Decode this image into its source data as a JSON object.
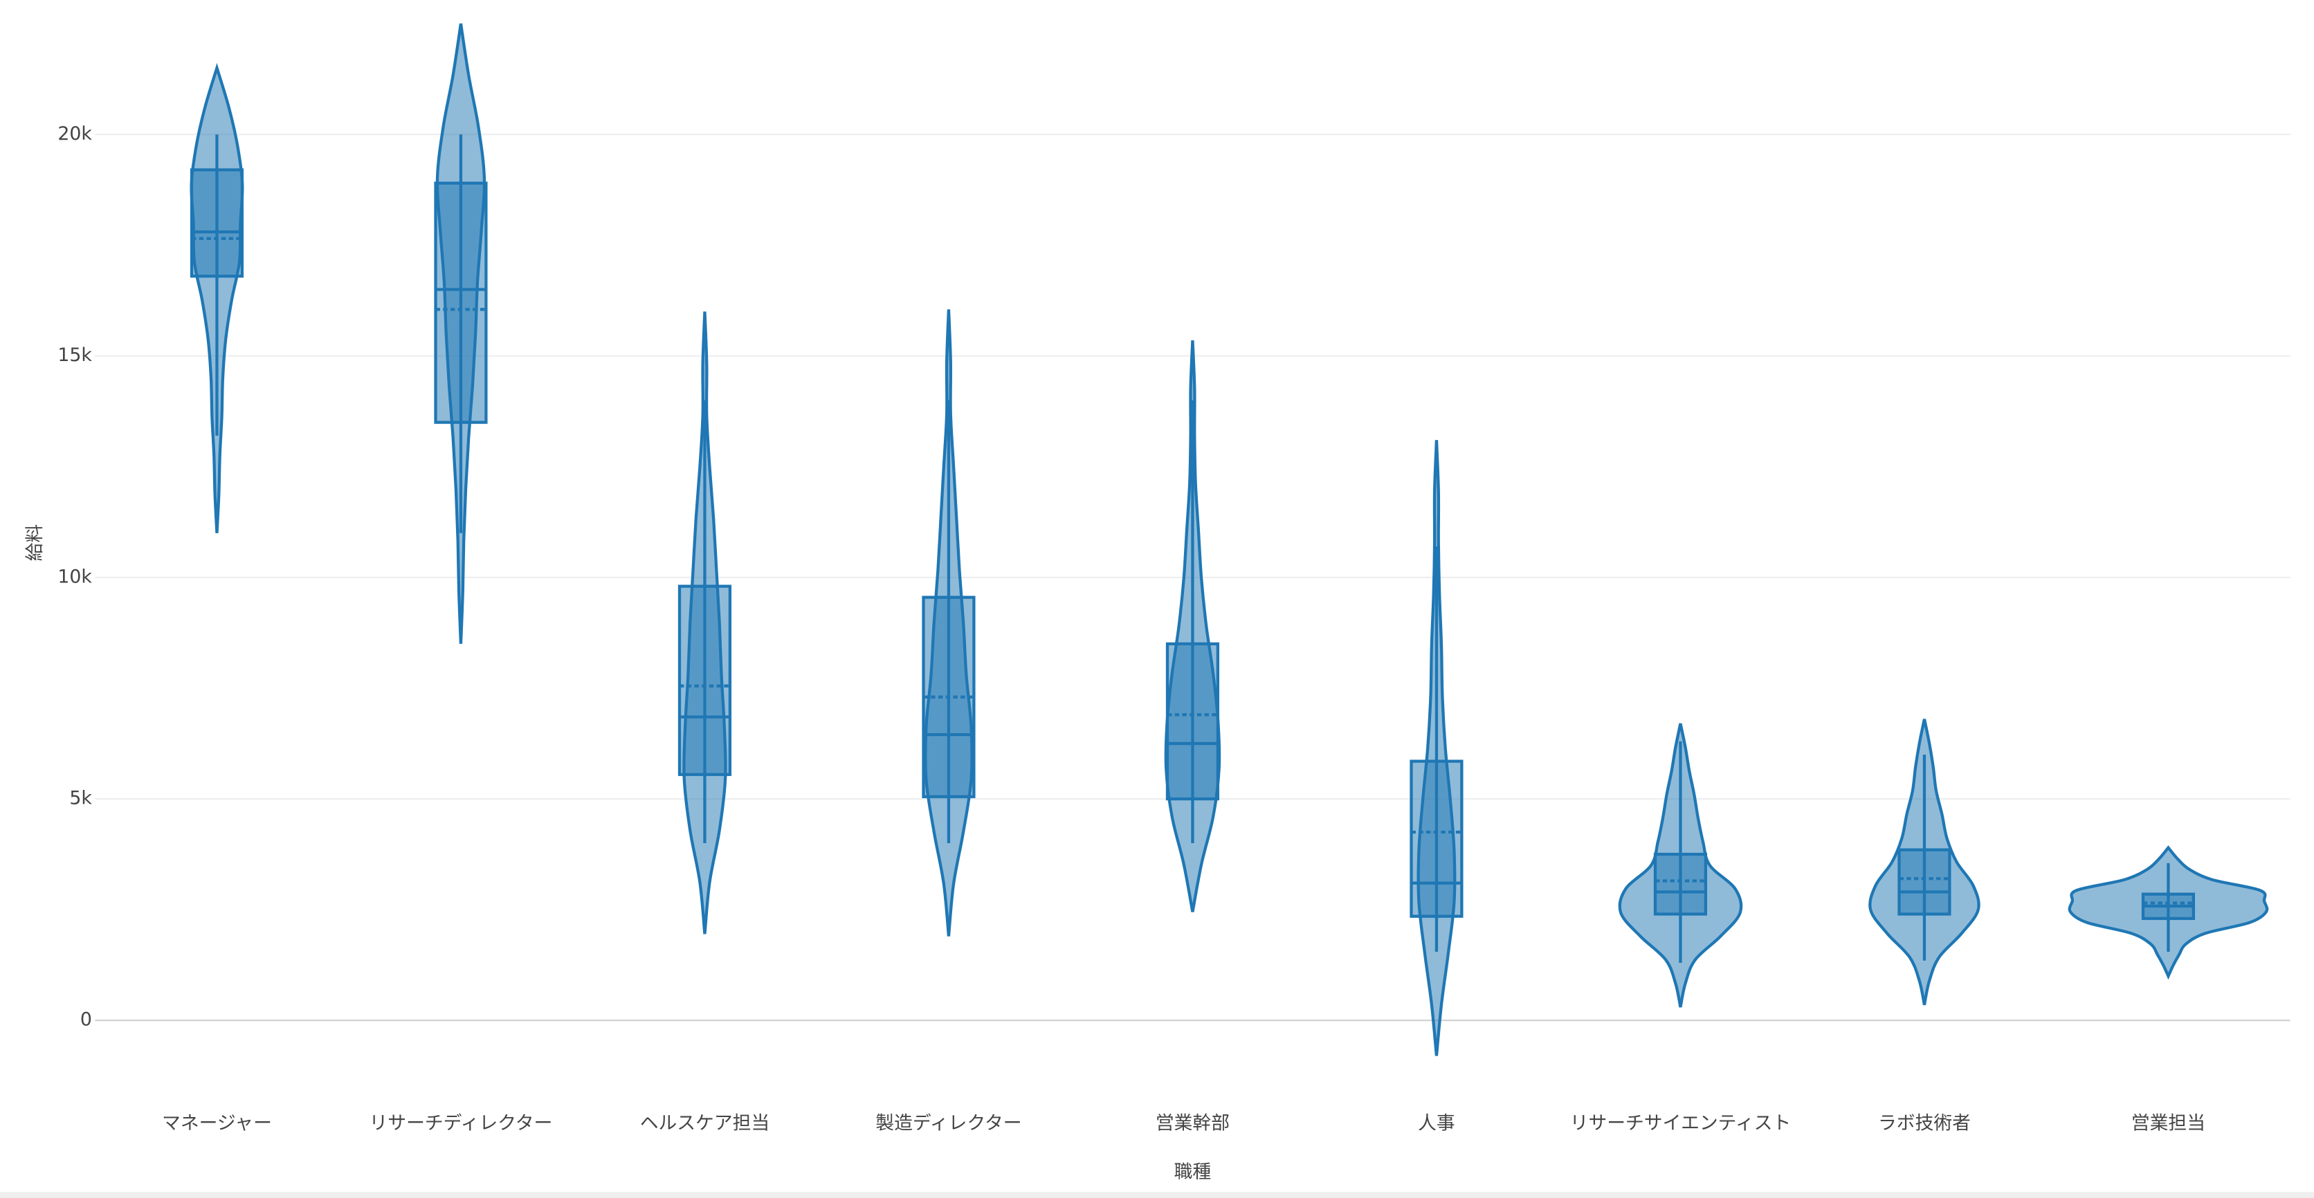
{
  "chart_data": {
    "type": "violin",
    "x_label": "職種",
    "y_label": "給料",
    "categories": [
      "マネージャー",
      "リサーチディレクター",
      "ヘルスケア担当",
      "製造ディレクター",
      "営業幹部",
      "人事",
      "リサーチサイエンティスト",
      "ラボ技術者",
      "営業担当"
    ],
    "color": "#1f77b4",
    "grid": true,
    "ylim": [
      -1700,
      22800
    ],
    "yticks": [
      0,
      {
        "value": 5000,
        "label": "5k"
      },
      {
        "value": 10000,
        "label": "10k"
      },
      {
        "value": 15000,
        "label": "15k"
      },
      {
        "value": 20000,
        "label": "20k"
      }
    ],
    "violins": [
      {
        "min": 11000,
        "max": 21500,
        "lowerfence": 13200,
        "q1": 16800,
        "median": 17800,
        "mean": 17650,
        "q3": 19200,
        "upperfence": 20000,
        "density": [
          0,
          0.02,
          0.03,
          0.05,
          0.06,
          0.09,
          0.15,
          0.23,
          0.24,
          0.26,
          0.21,
          0.12,
          0
        ]
      },
      {
        "min": 8500,
        "max": 22500,
        "lowerfence": 11000,
        "q1": 13500,
        "median": 16500,
        "mean": 16050,
        "q3": 18900,
        "upperfence": 20000,
        "density": [
          0,
          0.02,
          0.03,
          0.05,
          0.08,
          0.12,
          0.15,
          0.17,
          0.21,
          0.24,
          0.18,
          0.08,
          0
        ]
      },
      {
        "min": 1950,
        "max": 16000,
        "lowerfence": 4000,
        "q1": 5550,
        "median": 6850,
        "mean": 7550,
        "q3": 9800,
        "upperfence": 14000,
        "density": [
          0,
          0.05,
          0.15,
          0.21,
          0.2,
          0.17,
          0.15,
          0.12,
          0.09,
          0.05,
          0.02,
          0.02,
          0
        ]
      },
      {
        "min": 1900,
        "max": 16050,
        "lowerfence": 4000,
        "q1": 5050,
        "median": 6450,
        "mean": 7300,
        "q3": 9550,
        "upperfence": 14000,
        "density": [
          0,
          0.05,
          0.15,
          0.23,
          0.23,
          0.18,
          0.15,
          0.11,
          0.08,
          0.05,
          0.02,
          0.02,
          0
        ]
      },
      {
        "min": 2450,
        "max": 15350,
        "lowerfence": 4000,
        "q1": 5000,
        "median": 6250,
        "mean": 6900,
        "q3": 8500,
        "upperfence": 14000,
        "density": [
          0,
          0.09,
          0.21,
          0.27,
          0.26,
          0.21,
          0.14,
          0.09,
          0.06,
          0.03,
          0.02,
          0.02,
          0
        ]
      },
      {
        "min": -800,
        "max": 13100,
        "lowerfence": 1550,
        "q1": 2350,
        "median": 3100,
        "mean": 4250,
        "q3": 5850,
        "upperfence": 10700,
        "density": [
          0,
          0.05,
          0.12,
          0.18,
          0.18,
          0.14,
          0.09,
          0.06,
          0.05,
          0.03,
          0.02,
          0.02,
          0
        ]
      },
      {
        "min": 300,
        "max": 6700,
        "lowerfence": 1300,
        "q1": 2400,
        "median": 2900,
        "mean": 3150,
        "q3": 3750,
        "upperfence": 6300,
        "density": [
          0,
          0.05,
          0.15,
          0.41,
          0.61,
          0.56,
          0.3,
          0.23,
          0.18,
          0.14,
          0.09,
          0.05,
          0
        ]
      },
      {
        "min": 350,
        "max": 6800,
        "lowerfence": 1350,
        "q1": 2400,
        "median": 2900,
        "mean": 3200,
        "q3": 3850,
        "upperfence": 6000,
        "density": [
          0,
          0.05,
          0.15,
          0.38,
          0.55,
          0.5,
          0.33,
          0.23,
          0.18,
          0.12,
          0.09,
          0.05,
          0
        ]
      },
      {
        "min": 1000,
        "max": 3900,
        "lowerfence": 1550,
        "q1": 2300,
        "median": 2580,
        "mean": 2650,
        "q3": 2850,
        "upperfence": 3550,
        "density": [
          0,
          0.05,
          0.11,
          0.18,
          0.38,
          0.83,
          1,
          0.98,
          0.94,
          0.45,
          0.21,
          0.09,
          0
        ]
      }
    ]
  }
}
